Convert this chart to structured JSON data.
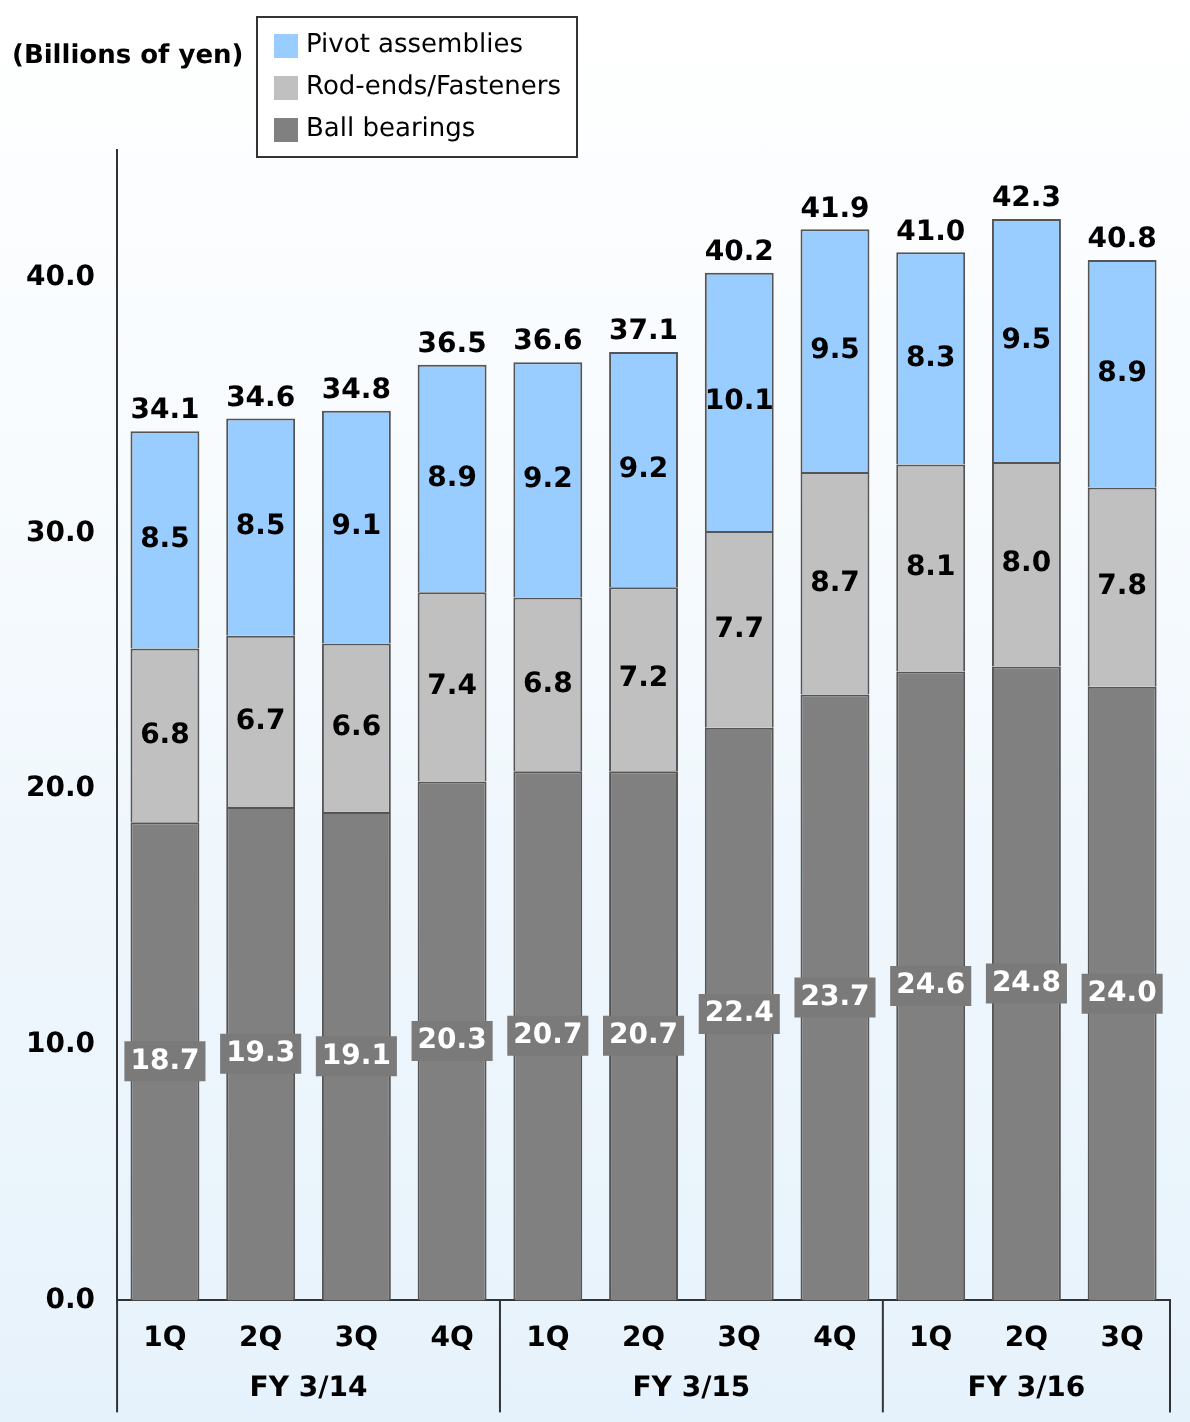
{
  "chart_data": {
    "type": "bar",
    "stacked": true,
    "ylabel": "(Billions of yen)",
    "categories": [
      "1Q",
      "2Q",
      "3Q",
      "4Q",
      "1Q",
      "2Q",
      "3Q",
      "4Q",
      "1Q",
      "2Q",
      "3Q"
    ],
    "series": [
      {
        "name": "Ball bearings",
        "color": "#808080",
        "values": [
          18.7,
          19.3,
          19.1,
          20.3,
          20.7,
          20.7,
          22.4,
          23.7,
          24.6,
          24.8,
          24.0
        ],
        "value_labels": [
          "18.7",
          "19.3",
          "19.1",
          "20.3",
          "20.7",
          "20.7",
          "22.4",
          "23.7",
          "24.6",
          "24.8",
          "24.0"
        ]
      },
      {
        "name": "Rod-ends/Fasteners",
        "color": "#c0c0c0",
        "values": [
          6.8,
          6.7,
          6.6,
          7.4,
          6.8,
          7.2,
          7.7,
          8.7,
          8.1,
          8.0,
          7.8
        ],
        "value_labels": [
          "6.8",
          "6.7",
          "6.6",
          "7.4",
          "6.8",
          "7.2",
          "7.7",
          "8.7",
          "8.1",
          "8.0",
          "7.8"
        ]
      },
      {
        "name": "Pivot assemblies",
        "color": "#99ccff",
        "values": [
          8.5,
          8.5,
          9.1,
          8.9,
          9.2,
          9.2,
          10.1,
          9.5,
          8.3,
          9.5,
          8.9
        ],
        "value_labels": [
          "8.5",
          "8.5",
          "9.1",
          "8.9",
          "9.2",
          "9.2",
          "10.1",
          "9.5",
          "8.3",
          "9.5",
          "8.9"
        ]
      }
    ],
    "totals": [
      "34.1",
      "34.6",
      "34.8",
      "36.5",
      "36.6",
      "37.1",
      "40.2",
      "41.9",
      "41.0",
      "42.3",
      "40.8"
    ],
    "annotations": [
      "FY 3/14",
      "FY 3/15",
      "FY 3/16"
    ],
    "ylim": [
      0,
      45
    ],
    "yticks": [
      {
        "value": 0,
        "label": "0.0"
      },
      {
        "value": 10,
        "label": "10.0"
      },
      {
        "value": 20,
        "label": "20.0"
      },
      {
        "value": 30,
        "label": "30.0"
      },
      {
        "value": 40,
        "label": "40.0"
      }
    ],
    "grid": false,
    "legend": "top left"
  }
}
